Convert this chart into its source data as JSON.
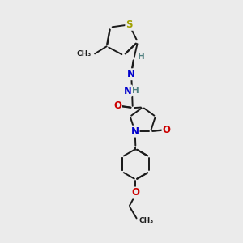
{
  "background_color": "#ebebeb",
  "atom_colors": {
    "S": "#a0a000",
    "N": "#0000cc",
    "O": "#cc0000",
    "C": "#1a1a1a",
    "H": "#508080"
  },
  "bond_color": "#1a1a1a",
  "bond_width": 1.4,
  "font_size_atom": 8.5,
  "font_size_H": 7.5
}
